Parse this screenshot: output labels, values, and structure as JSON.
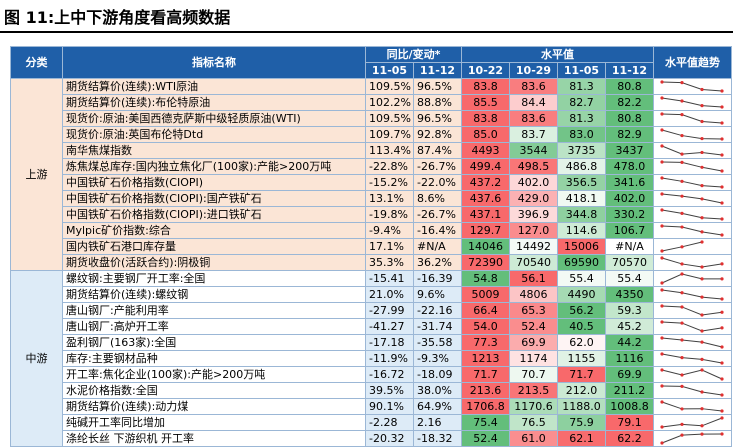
{
  "header": {
    "title": "图 11:上中下游角度看高频数据"
  },
  "table": {
    "columns": {
      "category": "分类",
      "name": "指标名称",
      "yoy": "同比/变动*",
      "level": "水平值",
      "trend": "水平值趋势",
      "yoy_dates": [
        "11-05",
        "11-12"
      ],
      "level_dates": [
        "10-22",
        "10-29",
        "11-05",
        "11-12"
      ]
    },
    "groups": [
      {
        "label": "上游",
        "rows": [
          {
            "name": "期货结算价(连续):WTI原油",
            "yoy": [
              "109.5%",
              "96.5%"
            ],
            "level": [
              "83.8",
              "83.6",
              "81.3",
              "80.8"
            ]
          },
          {
            "name": "期货结算价(连续):布伦特原油",
            "yoy": [
              "102.2%",
              "88.8%"
            ],
            "level": [
              "85.5",
              "84.4",
              "82.7",
              "82.2"
            ]
          },
          {
            "name": "现货价:原油:美国西德克萨斯中级轻质原油(WTI)",
            "yoy": [
              "109.5%",
              "96.5%"
            ],
            "level": [
              "83.8",
              "83.6",
              "81.3",
              "80.8"
            ]
          },
          {
            "name": "现货价:原油:英国布伦特Dtd",
            "yoy": [
              "109.7%",
              "92.8%"
            ],
            "level": [
              "85.0",
              "83.7",
              "83.0",
              "82.9"
            ]
          },
          {
            "name": "南华焦煤指数",
            "yoy": [
              "113.4%",
              "87.4%"
            ],
            "level": [
              "4493",
              "3544",
              "3735",
              "3437"
            ]
          },
          {
            "name": "炼焦煤总库存:国内独立焦化厂(100家):产能>200万吨",
            "yoy": [
              "-22.8%",
              "-26.7%"
            ],
            "level": [
              "499.4",
              "498.5",
              "486.8",
              "478.0"
            ]
          },
          {
            "name": "中国铁矿石价格指数(CIOPI)",
            "yoy": [
              "-15.2%",
              "-22.0%"
            ],
            "level": [
              "437.2",
              "402.0",
              "356.5",
              "341.6"
            ]
          },
          {
            "name": "中国铁矿石价格指数(CIOPI):国产铁矿石",
            "yoy": [
              "13.1%",
              "8.6%"
            ],
            "level": [
              "437.6",
              "429.0",
              "418.1",
              "402.0"
            ]
          },
          {
            "name": "中国铁矿石价格指数(CIOPI):进口铁矿石",
            "yoy": [
              "-19.8%",
              "-26.7%"
            ],
            "level": [
              "437.1",
              "396.9",
              "344.8",
              "330.2"
            ]
          },
          {
            "name": "Mylpic矿价指数:综合",
            "yoy": [
              "-9.4%",
              "-16.4%"
            ],
            "level": [
              "129.7",
              "127.0",
              "114.6",
              "106.7"
            ]
          },
          {
            "name": "国内铁矿石港口库存量",
            "yoy": [
              "17.1%",
              "#N/A"
            ],
            "level": [
              "14046",
              "14492",
              "15006",
              "#N/A"
            ]
          },
          {
            "name": "期货收盘价(活跃合约):阴极铜",
            "yoy": [
              "35.3%",
              "36.2%"
            ],
            "level": [
              "72390",
              "70540",
              "69590",
              "70570"
            ]
          }
        ]
      },
      {
        "label": "中游",
        "rows": [
          {
            "name": "螺纹钢:主要钢厂开工率:全国",
            "yoy": [
              "-15.41",
              "-16.39"
            ],
            "level": [
              "54.8",
              "56.1",
              "55.4",
              "55.4"
            ]
          },
          {
            "name": "期货结算价(连续):螺纹钢",
            "yoy": [
              "21.0%",
              "9.6%"
            ],
            "level": [
              "5009",
              "4806",
              "4490",
              "4350"
            ]
          },
          {
            "name": "唐山钢厂:产能利用率",
            "yoy": [
              "-27.99",
              "-22.16"
            ],
            "level": [
              "66.4",
              "65.3",
              "56.2",
              "59.3"
            ]
          },
          {
            "name": "唐山钢厂:高炉开工率",
            "yoy": [
              "-41.27",
              "-31.74"
            ],
            "level": [
              "54.0",
              "52.4",
              "40.5",
              "45.2"
            ]
          },
          {
            "name": "盈利钢厂(163家):全国",
            "yoy": [
              "-17.18",
              "-35.58"
            ],
            "level": [
              "77.3",
              "69.9",
              "62.0",
              "44.2"
            ]
          },
          {
            "name": "库存:主要钢材品种",
            "yoy": [
              "-11.9%",
              "-9.3%"
            ],
            "level": [
              "1213",
              "1174",
              "1155",
              "1116"
            ]
          },
          {
            "name": "开工率:焦化企业(100家):产能>200万吨",
            "yoy": [
              "-16.72",
              "-18.09"
            ],
            "level": [
              "71.7",
              "70.7",
              "71.7",
              "69.9"
            ]
          },
          {
            "name": "水泥价格指数:全国",
            "yoy": [
              "39.5%",
              "38.0%"
            ],
            "level": [
              "213.6",
              "213.5",
              "212.0",
              "211.2"
            ]
          },
          {
            "name": "期货结算价(连续):动力煤",
            "yoy": [
              "90.1%",
              "64.9%"
            ],
            "level": [
              "1706.8",
              "1170.6",
              "1188.0",
              "1008.8"
            ]
          },
          {
            "name": "纯碱开工率同比增加",
            "yoy": [
              "-2.28",
              "2.16"
            ],
            "level": [
              "75.4",
              "76.5",
              "75.9",
              "79.1"
            ]
          },
          {
            "name": "涤纶长丝 下游织机 开工率",
            "yoy": [
              "-20.32",
              "-18.32"
            ],
            "level": [
              "52.4",
              "61.0",
              "62.1",
              "62.2"
            ]
          }
        ]
      }
    ]
  }
}
